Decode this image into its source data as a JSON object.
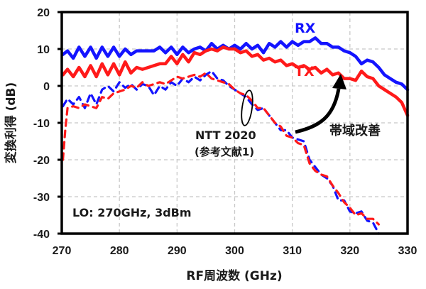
{
  "chart_data": {
    "type": "line",
    "title": "",
    "xlabel": "RF周波数 (GHz)",
    "ylabel": "変換利得 (dB)",
    "xlim": [
      270,
      330
    ],
    "ylim": [
      -40,
      20
    ],
    "xticks": [
      270,
      280,
      290,
      300,
      310,
      320,
      330
    ],
    "yticks": [
      20,
      10,
      0,
      -10,
      -20,
      -30,
      -40
    ],
    "xtick_labels": [
      "270",
      "280",
      "290",
      "300",
      "310",
      "320",
      "330"
    ],
    "ytick_labels": [
      "20",
      "10",
      "0",
      "-10",
      "-20",
      "-30",
      "-40"
    ],
    "grid": true,
    "series": [
      {
        "name": "RX",
        "style": "solid",
        "color": "#1414ff",
        "x": [
          270.2,
          271,
          272,
          273,
          274,
          275,
          276,
          277,
          278,
          279,
          280,
          281,
          282,
          283,
          284,
          285,
          286,
          287,
          288,
          289,
          290,
          291,
          292,
          293,
          294,
          295,
          296,
          297,
          298,
          299,
          300,
          301,
          302,
          303,
          304,
          305,
          306,
          307,
          308,
          309,
          310,
          311,
          312,
          313,
          314,
          315,
          316,
          317,
          318,
          319,
          320,
          321,
          322,
          323,
          324,
          325,
          326,
          327,
          328,
          329,
          330
        ],
        "y": [
          8.5,
          9.5,
          7.5,
          10.5,
          8,
          10.5,
          7.5,
          10.5,
          8,
          10.5,
          8,
          10,
          8.5,
          9.5,
          9.5,
          9.5,
          9.5,
          10.5,
          9,
          10.5,
          8.5,
          10.5,
          9,
          10,
          10.5,
          9.5,
          11.5,
          10,
          11,
          10,
          11,
          10,
          11.5,
          10,
          11,
          9,
          11.5,
          10.5,
          12,
          10.5,
          12,
          11,
          12,
          12,
          13,
          11.5,
          11.5,
          10.5,
          10.5,
          9.5,
          9,
          8,
          6,
          7,
          6.5,
          5,
          3,
          2,
          1,
          0.5,
          -1
        ]
      },
      {
        "name": "TX",
        "style": "solid",
        "color": "#ff1a1a",
        "x": [
          270.2,
          271,
          272,
          273,
          274,
          275,
          276,
          277,
          278,
          279,
          280,
          281,
          282,
          283,
          284,
          285,
          286,
          287,
          288,
          289,
          290,
          291,
          292,
          293,
          294,
          295,
          296,
          297,
          298,
          299,
          300,
          301,
          302,
          303,
          304,
          305,
          306,
          307,
          308,
          309,
          310,
          311,
          312,
          313,
          314,
          315,
          316,
          317,
          318,
          319,
          320,
          321,
          322,
          323,
          324,
          325,
          326,
          327,
          328,
          329,
          330
        ],
        "y": [
          3,
          4.5,
          2.5,
          5,
          2.5,
          5.5,
          2.5,
          6,
          3,
          6,
          3,
          6.5,
          3.5,
          5,
          4.5,
          5,
          5.5,
          6,
          6,
          8,
          6,
          8.5,
          6.5,
          9,
          8.5,
          9.5,
          10,
          9.5,
          10.5,
          10,
          10,
          9,
          9.5,
          8,
          8.5,
          7,
          7.5,
          6.5,
          7,
          5.5,
          6,
          5,
          5.5,
          4.5,
          5,
          3.5,
          4.5,
          3,
          3.5,
          2,
          2,
          1.5,
          4,
          2.5,
          2,
          0,
          -1,
          -2,
          -3,
          -4.5,
          -8
        ]
      },
      {
        "name": "NTT 2020 RX",
        "style": "dashed",
        "color": "#1414ff",
        "x": [
          270.2,
          271,
          272,
          273,
          274,
          275,
          276,
          277,
          278,
          279,
          280,
          281,
          282,
          283,
          284,
          285,
          286,
          287,
          288,
          289,
          290,
          291,
          292,
          293,
          294,
          295,
          296,
          297,
          298,
          299,
          300,
          301,
          302,
          303,
          304,
          305,
          306,
          307,
          308,
          309,
          310,
          311,
          312,
          313,
          314,
          315,
          316,
          317,
          318,
          319,
          320,
          321,
          322,
          323,
          324,
          325
        ],
        "y": [
          -5.5,
          -3.5,
          -5,
          -3,
          -6,
          -2,
          -5,
          -1,
          0,
          -1.5,
          1,
          -0.5,
          0.5,
          -1,
          0.5,
          0,
          -2.5,
          0,
          -1,
          1,
          0,
          2,
          1,
          2.5,
          1.5,
          3,
          4,
          2,
          1.5,
          0,
          -1,
          -2,
          -3,
          -5,
          -6.5,
          -6,
          -8,
          -10,
          -12,
          -12,
          -14,
          -14.5,
          -15,
          -20,
          -22,
          -24,
          -25,
          -27,
          -31,
          -31,
          -34,
          -34.5,
          -34,
          -36.5,
          -37,
          -40
        ]
      },
      {
        "name": "NTT 2020 TX",
        "style": "dashed",
        "color": "#ff1a1a",
        "x": [
          270.2,
          270.6,
          271,
          272,
          273,
          274,
          275,
          276,
          277,
          278,
          279,
          280,
          281,
          282,
          283,
          284,
          285,
          286,
          287,
          288,
          289,
          290,
          291,
          292,
          293,
          294,
          295,
          296,
          297,
          298,
          299,
          300,
          301,
          302,
          303,
          304,
          305,
          306,
          307,
          308,
          309,
          310,
          311,
          312,
          313,
          314,
          315,
          316,
          317,
          318,
          319,
          320,
          321,
          322,
          323,
          324,
          325
        ],
        "y": [
          -20,
          -12,
          -6,
          -5.5,
          -6,
          -5,
          -5.5,
          -6,
          -3,
          -3.5,
          -2,
          -1.5,
          -1,
          0,
          -0.5,
          1,
          0,
          0.5,
          1,
          0.5,
          1.5,
          2.5,
          2,
          2.5,
          3,
          2.5,
          3.5,
          2,
          1.5,
          1,
          0.5,
          -1,
          -2,
          -2.5,
          -4,
          -6,
          -6,
          -8,
          -10,
          -11,
          -13.5,
          -14,
          -15.5,
          -16,
          -21,
          -23,
          -24,
          -24.5,
          -27,
          -29,
          -31.5,
          -33,
          -35,
          -34.5,
          -36,
          -36,
          -37.5
        ]
      }
    ],
    "annotations": {
      "rx_label": "RX",
      "tx_label": "TX",
      "ref_line1": "NTT 2020",
      "ref_line2": "(参考文献1)",
      "improvement": "帯域改善",
      "conditions": "LO: 270GHz, 3dBm"
    }
  }
}
